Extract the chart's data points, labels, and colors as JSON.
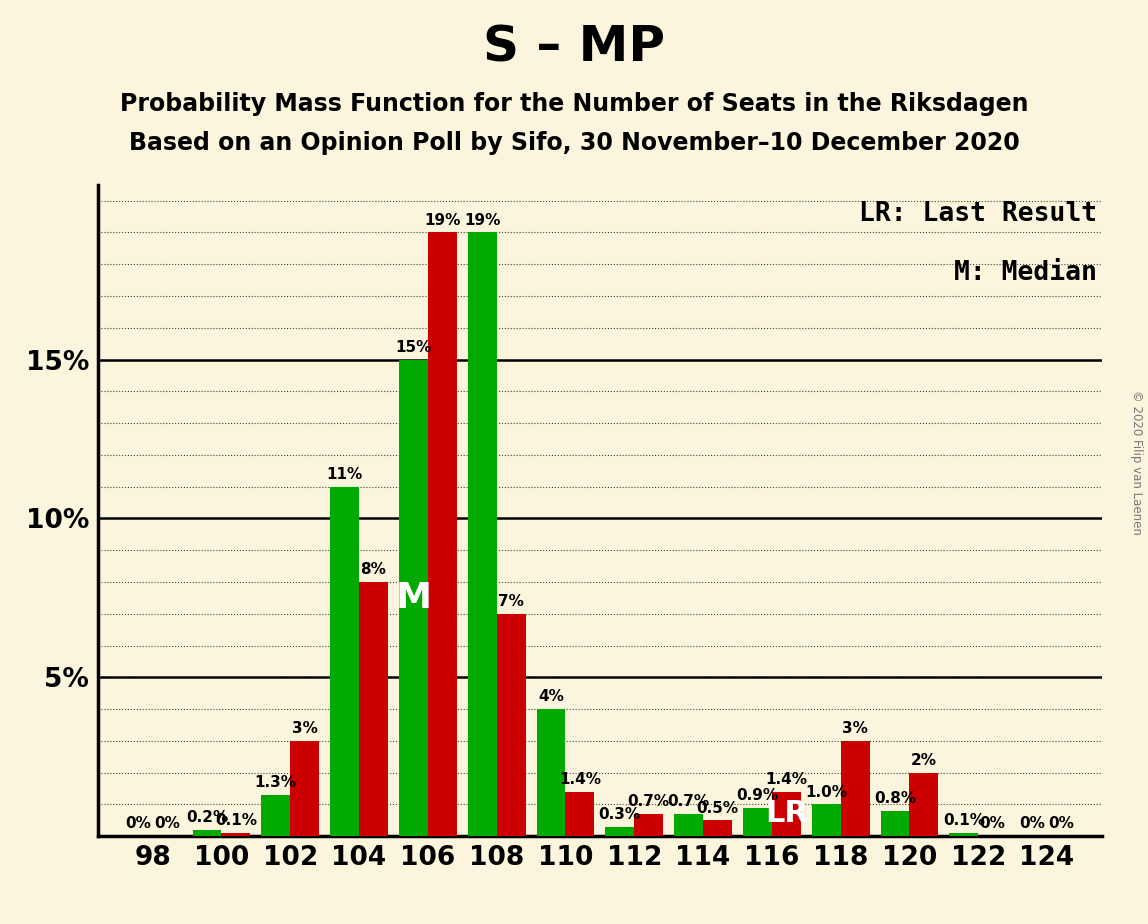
{
  "title": "S – MP",
  "subtitle1": "Probability Mass Function for the Number of Seats in the Riksdagen",
  "subtitle2": "Based on an Opinion Poll by Sifo, 30 November–10 December 2020",
  "copyright": "© 2020 Filip van Laenen",
  "legend_lr": "LR: Last Result",
  "legend_m": "M: Median",
  "median_label": "M",
  "lr_label": "LR",
  "seats": [
    98,
    100,
    102,
    104,
    106,
    108,
    110,
    112,
    114,
    116,
    118,
    120,
    122,
    124
  ],
  "red_values": [
    0.0,
    0.1,
    3.0,
    8.0,
    19.0,
    7.0,
    1.4,
    0.7,
    0.5,
    1.4,
    3.0,
    2.0,
    0.0,
    0.0
  ],
  "green_values": [
    0.0,
    0.2,
    1.3,
    11.0,
    15.0,
    19.0,
    4.0,
    0.3,
    0.7,
    0.9,
    1.0,
    0.8,
    0.1,
    0.0
  ],
  "red_labels": [
    "0%",
    "0.1%",
    "3%",
    "8%",
    "19%",
    "7%",
    "1.4%",
    "0.7%",
    "0.5%",
    "1.4%",
    "3%",
    "2%",
    "0%",
    "0%"
  ],
  "green_labels": [
    "0%",
    "0.2%",
    "1.3%",
    "11%",
    "15%",
    "19%",
    "4%",
    "0.3%",
    "0.7%",
    "0.9%",
    "1.0%",
    "0.8%",
    "0.1%",
    "0%"
  ],
  "red_color": "#cc0000",
  "green_color": "#00aa00",
  "background_color": "#faf5dc",
  "grid_color": "#444444",
  "bar_width": 0.42,
  "ylim_max": 20.5,
  "ytick_vals": [
    5,
    10,
    15
  ],
  "ytick_labels": [
    "5%",
    "10%",
    "15%"
  ],
  "median_seat_idx": 4,
  "lr_seat_idx": 9,
  "title_fontsize": 36,
  "subtitle_fontsize": 17,
  "label_fontsize": 11,
  "axis_tick_fontsize": 19,
  "legend_fontsize": 19,
  "median_label_fontsize": 26,
  "lr_label_fontsize": 22
}
